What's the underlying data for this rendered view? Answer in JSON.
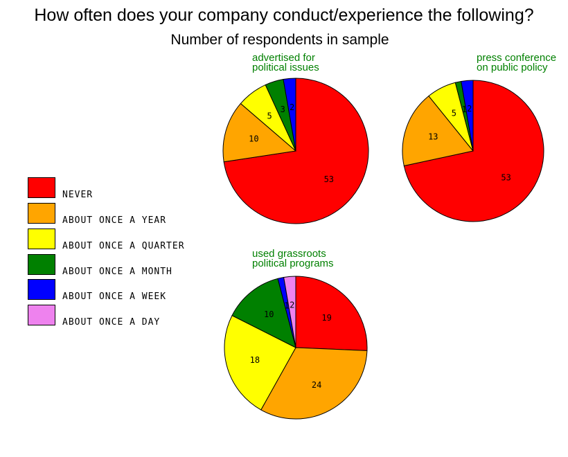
{
  "title": "How often does your company conduct/experience the following?",
  "subtitle": "Number of respondents in sample",
  "legend": [
    {
      "label": "NEVER",
      "color": "#ff0000"
    },
    {
      "label": "ABOUT ONCE A YEAR",
      "color": "#ffa500"
    },
    {
      "label": "ABOUT ONCE A QUARTER",
      "color": "#ffff00"
    },
    {
      "label": "ABOUT ONCE A MONTH",
      "color": "#008000"
    },
    {
      "label": "ABOUT ONCE A WEEK",
      "color": "#0000ff"
    },
    {
      "label": "ABOUT ONCE A DAY",
      "color": "#ee82ee"
    }
  ],
  "chart_data": [
    {
      "type": "pie",
      "title_lines": [
        "advertised for",
        "political issues"
      ],
      "categories": [
        "NEVER",
        "ABOUT ONCE A YEAR",
        "ABOUT ONCE A QUARTER",
        "ABOUT ONCE A MONTH",
        "ABOUT ONCE A WEEK",
        "ABOUT ONCE A DAY"
      ],
      "values": [
        53,
        10,
        5,
        3,
        2,
        0
      ],
      "colors": [
        "#ff0000",
        "#ffa500",
        "#ffff00",
        "#008000",
        "#0000ff",
        "#ee82ee"
      ]
    },
    {
      "type": "pie",
      "title_lines": [
        "press conference",
        "on public policy"
      ],
      "categories": [
        "NEVER",
        "ABOUT ONCE A YEAR",
        "ABOUT ONCE A QUARTER",
        "ABOUT ONCE A MONTH",
        "ABOUT ONCE A WEEK",
        "ABOUT ONCE A DAY"
      ],
      "values": [
        53,
        13,
        5,
        1,
        2,
        0
      ],
      "colors": [
        "#ff0000",
        "#ffa500",
        "#ffff00",
        "#008000",
        "#0000ff",
        "#ee82ee"
      ]
    },
    {
      "type": "pie",
      "title_lines": [
        "used grassroots",
        "political programs"
      ],
      "categories": [
        "NEVER",
        "ABOUT ONCE A YEAR",
        "ABOUT ONCE A QUARTER",
        "ABOUT ONCE A MONTH",
        "ABOUT ONCE A WEEK",
        "ABOUT ONCE A DAY"
      ],
      "values": [
        19,
        24,
        18,
        10,
        1,
        2
      ],
      "colors": [
        "#ff0000",
        "#ffa500",
        "#ffff00",
        "#008000",
        "#0000ff",
        "#ee82ee"
      ]
    }
  ]
}
